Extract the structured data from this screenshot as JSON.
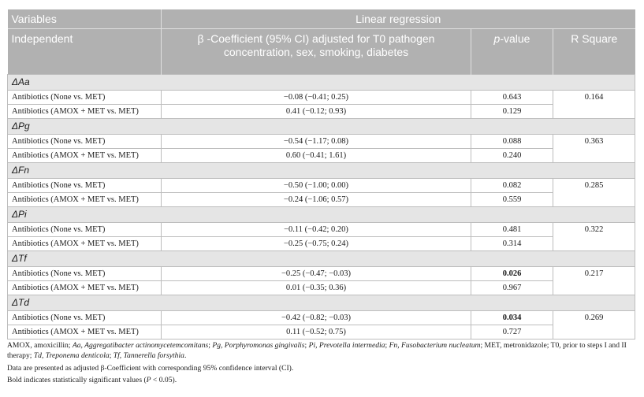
{
  "header": {
    "variables": "Variables",
    "linear_regression": "Linear regression",
    "independent": "Independent",
    "beta_line1": "β -Coefficient (95% CI) adjusted for T0 pathogen",
    "beta_line2": "concentration, sex, smoking, diabetes",
    "p_value_prefix": "p",
    "p_value_suffix": "-value",
    "r_square": "R Square"
  },
  "groups": [
    {
      "label": "ΔAa",
      "r_square": "0.164",
      "rows": [
        {
          "independent": "Antibiotics (None vs. MET)",
          "beta": "−0.08 (−0.41; 0.25)",
          "p": "0.643",
          "bold": false
        },
        {
          "independent": "Antibiotics (AMOX + MET vs. MET)",
          "beta": "0.41 (−0.12; 0.93)",
          "p": "0.129",
          "bold": false
        }
      ]
    },
    {
      "label": "ΔPg",
      "r_square": "0.363",
      "rows": [
        {
          "independent": "Antibiotics (None vs. MET)",
          "beta": "−0.54 (−1.17; 0.08)",
          "p": "0.088",
          "bold": false
        },
        {
          "independent": "Antibiotics (AMOX + MET vs. MET)",
          "beta": "0.60 (−0.41; 1.61)",
          "p": "0.240",
          "bold": false
        }
      ]
    },
    {
      "label": "ΔFn",
      "r_square": "0.285",
      "rows": [
        {
          "independent": "Antibiotics (None vs. MET)",
          "beta": "−0.50 (−1.00; 0.00)",
          "p": "0.082",
          "bold": false
        },
        {
          "independent": "Antibiotics (AMOX + MET vs. MET)",
          "beta": "−0.24 (−1.06; 0.57)",
          "p": "0.559",
          "bold": false
        }
      ]
    },
    {
      "label": "ΔPi",
      "r_square": "0.322",
      "rows": [
        {
          "independent": "Antibiotics (None vs. MET)",
          "beta": "−0.11 (−0.42; 0.20)",
          "p": "0.481",
          "bold": false
        },
        {
          "independent": "Antibiotics (AMOX + MET vs. MET)",
          "beta": "−0.25 (−0.75; 0.24)",
          "p": "0.314",
          "bold": false
        }
      ]
    },
    {
      "label": "ΔTf",
      "r_square": "0.217",
      "rows": [
        {
          "independent": "Antibiotics (None vs. MET)",
          "beta": "−0.25 (−0.47; −0.03)",
          "p": "0.026",
          "bold": true
        },
        {
          "independent": "Antibiotics (AMOX + MET vs. MET)",
          "beta": "0.01 (−0.35; 0.36)",
          "p": "0.967",
          "bold": false
        }
      ]
    },
    {
      "label": "ΔTd",
      "r_square": "0.269",
      "rows": [
        {
          "independent": "Antibiotics (None vs. MET)",
          "beta": "−0.42 (−0.82; −0.03)",
          "p": "0.034",
          "bold": true
        },
        {
          "independent": "Antibiotics (AMOX + MET vs. MET)",
          "beta": "0.11 (−0.52; 0.75)",
          "p": "0.727",
          "bold": false
        }
      ]
    }
  ],
  "footnotes": {
    "abbrev_html": "AMOX, amoxicillin; <i>Aa, Aggregatibacter actinomycetemcomitans</i>; <i>Pg, Porphyromonas gingivalis</i>; <i>Pi, Prevotella intermedia</i>; <i>Fn, Fusobacterium nucleatum</i>; MET, metronidazole; T0, prior to steps I and II therapy; <i>Td, Treponema denticola</i>; <i>Tf, Tannerella forsythia</i>.",
    "presentation": "Data are presented as adjusted β-Coefficient with corresponding 95% confidence interval (CI).",
    "bold_note_html": "Bold indicates statistically significant values (<i>P</i> &lt; 0.05)."
  },
  "colors": {
    "header_bg": "#b1b1b1",
    "group_bg": "#e5e5e5",
    "border": "#bdbdbd"
  }
}
